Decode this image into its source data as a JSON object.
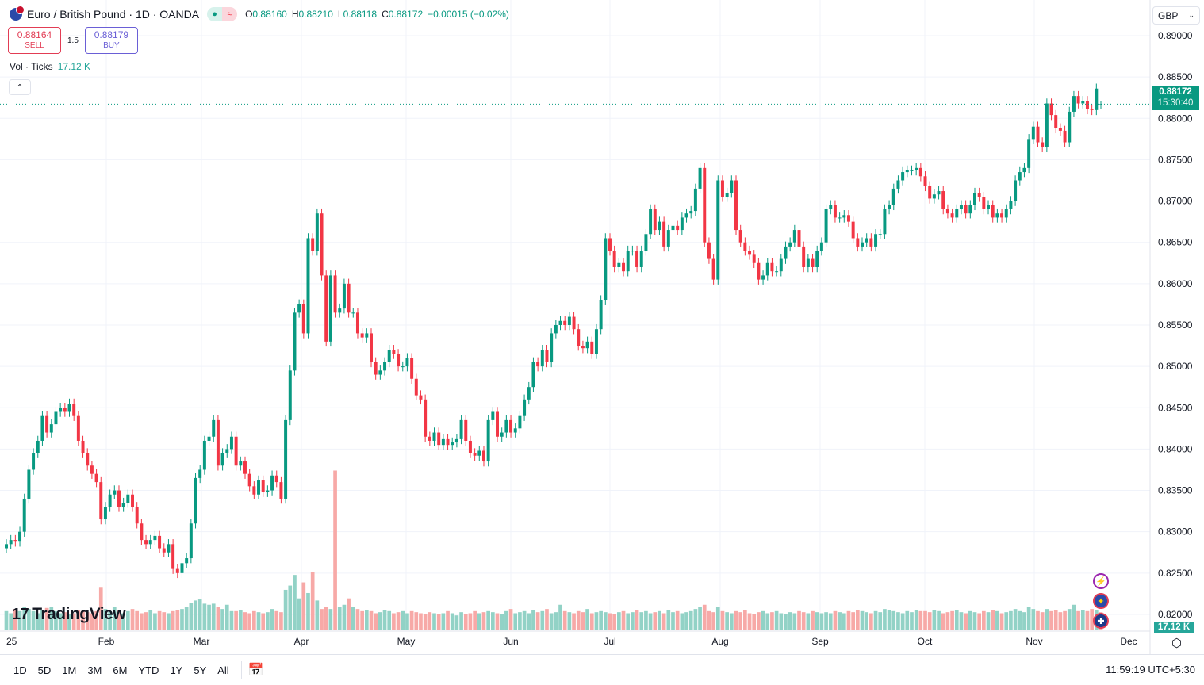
{
  "header": {
    "title": "Euro / British Pound · 1D · OANDA",
    "open_label": "O",
    "open": "0.88160",
    "high_label": "H",
    "high": "0.88210",
    "low_label": "L",
    "low": "0.88118",
    "close_label": "C",
    "close": "0.88172",
    "change": "−0.00015 (−0.02%)",
    "market_status_icon": "dot-open",
    "indicator_icon": "approx-wave"
  },
  "trade": {
    "sell_price": "0.88164",
    "sell_label": "SELL",
    "spread": "1.5",
    "buy_price": "0.88179",
    "buy_label": "BUY"
  },
  "volume_legend": {
    "label": "Vol · Ticks",
    "value": "17.12 K"
  },
  "currency_selector": "GBP",
  "last_price": {
    "value": "0.88172",
    "countdown": "15:30:40"
  },
  "last_volume": "17.12 K",
  "logo": "TradingView",
  "bottom_bar": {
    "ranges": [
      "1D",
      "5D",
      "1M",
      "3M",
      "6M",
      "YTD",
      "1Y",
      "5Y",
      "All"
    ],
    "clock": "11:59:19 UTC+5:30"
  },
  "colors": {
    "up": "#089981",
    "down": "#f23645",
    "vol_up": "#92d2c6",
    "vol_down": "#f7a9a7"
  },
  "chart_data": {
    "type": "candlestick",
    "y_ticks": [
      "0.89000",
      "0.88500",
      "0.88000",
      "0.87500",
      "0.87000",
      "0.86500",
      "0.86000",
      "0.85500",
      "0.85000",
      "0.84500",
      "0.84000",
      "0.83500",
      "0.83000",
      "0.82500",
      "0.82000"
    ],
    "ylim": [
      0.8195,
      0.8905
    ],
    "x_ticks": [
      "25",
      "Feb",
      "Mar",
      "Apr",
      "May",
      "Jun",
      "Jul",
      "Aug",
      "Sep",
      "Oct",
      "Nov",
      "Dec"
    ],
    "grid": true,
    "last_candle": {
      "open": 0.8816,
      "high": 0.8821,
      "low": 0.88118,
      "close": 0.88172
    },
    "closes": [
      0.8285,
      0.829,
      0.8288,
      0.83,
      0.834,
      0.8375,
      0.8395,
      0.841,
      0.844,
      0.842,
      0.843,
      0.8445,
      0.845,
      0.8445,
      0.8455,
      0.844,
      0.841,
      0.8395,
      0.838,
      0.837,
      0.836,
      0.8315,
      0.833,
      0.8345,
      0.835,
      0.833,
      0.8335,
      0.8345,
      0.833,
      0.831,
      0.829,
      0.8285,
      0.829,
      0.8295,
      0.828,
      0.8275,
      0.8285,
      0.8255,
      0.825,
      0.8262,
      0.8268,
      0.831,
      0.8365,
      0.8375,
      0.841,
      0.8415,
      0.8435,
      0.838,
      0.8395,
      0.84,
      0.8415,
      0.838,
      0.8385,
      0.837,
      0.8355,
      0.8345,
      0.8362,
      0.8348,
      0.835,
      0.8368,
      0.836,
      0.834,
      0.8435,
      0.8495,
      0.8565,
      0.8575,
      0.854,
      0.8655,
      0.864,
      0.8685,
      0.861,
      0.853,
      0.861,
      0.8565,
      0.857,
      0.86,
      0.8565,
      0.8565,
      0.854,
      0.8535,
      0.854,
      0.8505,
      0.849,
      0.8495,
      0.8505,
      0.852,
      0.8515,
      0.85,
      0.85,
      0.851,
      0.8485,
      0.8465,
      0.846,
      0.8415,
      0.841,
      0.842,
      0.8405,
      0.8412,
      0.8405,
      0.8408,
      0.8412,
      0.8435,
      0.841,
      0.8395,
      0.8392,
      0.8398,
      0.8385,
      0.8435,
      0.8445,
      0.8415,
      0.842,
      0.8435,
      0.842,
      0.8425,
      0.844,
      0.846,
      0.8475,
      0.8505,
      0.85,
      0.852,
      0.8505,
      0.854,
      0.855,
      0.8555,
      0.855,
      0.856,
      0.8545,
      0.8525,
      0.8522,
      0.853,
      0.8515,
      0.8545,
      0.858,
      0.8655,
      0.864,
      0.862,
      0.8625,
      0.8615,
      0.864,
      0.864,
      0.862,
      0.864,
      0.866,
      0.869,
      0.8665,
      0.8675,
      0.8645,
      0.8665,
      0.867,
      0.8665,
      0.868,
      0.8685,
      0.8688,
      0.8715,
      0.874,
      0.865,
      0.863,
      0.8605,
      0.8725,
      0.8705,
      0.871,
      0.8725,
      0.8665,
      0.865,
      0.864,
      0.8635,
      0.8625,
      0.8605,
      0.861,
      0.8625,
      0.8615,
      0.8615,
      0.863,
      0.8645,
      0.865,
      0.8665,
      0.8645,
      0.862,
      0.863,
      0.862,
      0.864,
      0.865,
      0.869,
      0.8695,
      0.868,
      0.868,
      0.8683,
      0.8675,
      0.8655,
      0.8645,
      0.865,
      0.8655,
      0.8645,
      0.866,
      0.866,
      0.869,
      0.8695,
      0.8715,
      0.8725,
      0.8735,
      0.8737,
      0.8737,
      0.874,
      0.873,
      0.8718,
      0.8703,
      0.8708,
      0.8712,
      0.869,
      0.8685,
      0.868,
      0.869,
      0.8695,
      0.8685,
      0.8695,
      0.871,
      0.8705,
      0.869,
      0.8695,
      0.868,
      0.8685,
      0.868,
      0.869,
      0.87,
      0.8725,
      0.8735,
      0.874,
      0.8775,
      0.879,
      0.8771,
      0.8765,
      0.8818,
      0.8804,
      0.8788,
      0.8785,
      0.8771,
      0.8808,
      0.8827,
      0.8818,
      0.8821,
      0.8811,
      0.881,
      0.8836,
      0.8816
    ],
    "volume_k": [
      18,
      16,
      20,
      18,
      22,
      20,
      18,
      16,
      19,
      21,
      22,
      18,
      16,
      17,
      15,
      16,
      19,
      18,
      17,
      16,
      18,
      40,
      20,
      18,
      22,
      19,
      16,
      18,
      20,
      18,
      16,
      17,
      19,
      16,
      18,
      17,
      16,
      18,
      19,
      20,
      22,
      26,
      28,
      29,
      25,
      24,
      25,
      22,
      20,
      24,
      18,
      18,
      19,
      17,
      16,
      18,
      17,
      16,
      17,
      20,
      18,
      17,
      38,
      42,
      52,
      30,
      45,
      35,
      55,
      28,
      20,
      22,
      20,
      150,
      22,
      24,
      30,
      22,
      20,
      18,
      19,
      18,
      16,
      17,
      19,
      18,
      16,
      17,
      18,
      16,
      18,
      17,
      16,
      15,
      17,
      16,
      15,
      16,
      18,
      16,
      14,
      17,
      15,
      16,
      18,
      16,
      17,
      18,
      17,
      16,
      15,
      18,
      20,
      16,
      17,
      18,
      16,
      19,
      17,
      18,
      20,
      16,
      17,
      24,
      18,
      17,
      16,
      18,
      17,
      20,
      16,
      17,
      18,
      17,
      16,
      15,
      17,
      18,
      16,
      17,
      19,
      17,
      18,
      16,
      17,
      18,
      16,
      19,
      17,
      18,
      16,
      17,
      18,
      20,
      22,
      24,
      18,
      17,
      22,
      18,
      17,
      16,
      18,
      17,
      19,
      16,
      15,
      17,
      18,
      16,
      17,
      18,
      16,
      15,
      17,
      16,
      18,
      17,
      16,
      18,
      17,
      16,
      17,
      16,
      18,
      17,
      16,
      18,
      17,
      19,
      18,
      17,
      16,
      18,
      17,
      20,
      19,
      18,
      17,
      16,
      18,
      17,
      19,
      18,
      18,
      17,
      19,
      18,
      16,
      17,
      18,
      19,
      17,
      16,
      18,
      17,
      16,
      18,
      17,
      19,
      18,
      16,
      17,
      18,
      20,
      18,
      17,
      22,
      20,
      18,
      17,
      20,
      18,
      19,
      17,
      18,
      20,
      24,
      18,
      19,
      18,
      20,
      19,
      17,
      17.12
    ]
  }
}
